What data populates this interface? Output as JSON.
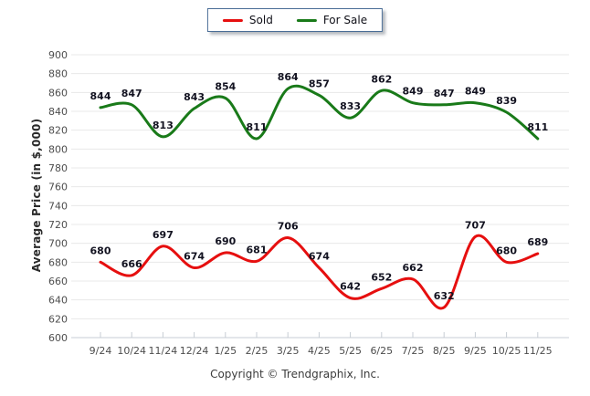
{
  "footer": {
    "copyright": "Copyright © Trendgraphix, Inc."
  },
  "colors": {
    "grid": "#e8e8e8",
    "axis": "#c7cdd4",
    "tick": "#c7cdd4",
    "tick_label": "#4d4d4d",
    "data_label": "#121220",
    "sold": "#e60f0f",
    "for_sale": "#197a19"
  },
  "chart_data": {
    "type": "line",
    "title": "",
    "xlabel": "",
    "ylabel": "Average Price (in $,000)",
    "categories": [
      "9/24",
      "10/24",
      "11/24",
      "12/24",
      "1/25",
      "2/25",
      "3/25",
      "4/25",
      "5/25",
      "6/25",
      "7/25",
      "8/25",
      "9/25",
      "10/25",
      "11/25"
    ],
    "series": [
      {
        "name": "Sold",
        "color": "#e60f0f",
        "values": [
          680,
          666,
          697,
          674,
          690,
          681,
          706,
          674,
          642,
          652,
          662,
          632,
          707,
          680,
          689
        ]
      },
      {
        "name": "For Sale",
        "color": "#197a19",
        "values": [
          844,
          847,
          813,
          843,
          854,
          811,
          864,
          857,
          833,
          862,
          849,
          847,
          849,
          839,
          811
        ]
      }
    ],
    "ylim": [
      600,
      900
    ],
    "yticks": [
      600,
      620,
      640,
      660,
      680,
      700,
      720,
      740,
      760,
      780,
      800,
      820,
      840,
      860,
      880,
      900
    ],
    "grid": true,
    "data_labels": true,
    "legend_position": "top-center"
  }
}
